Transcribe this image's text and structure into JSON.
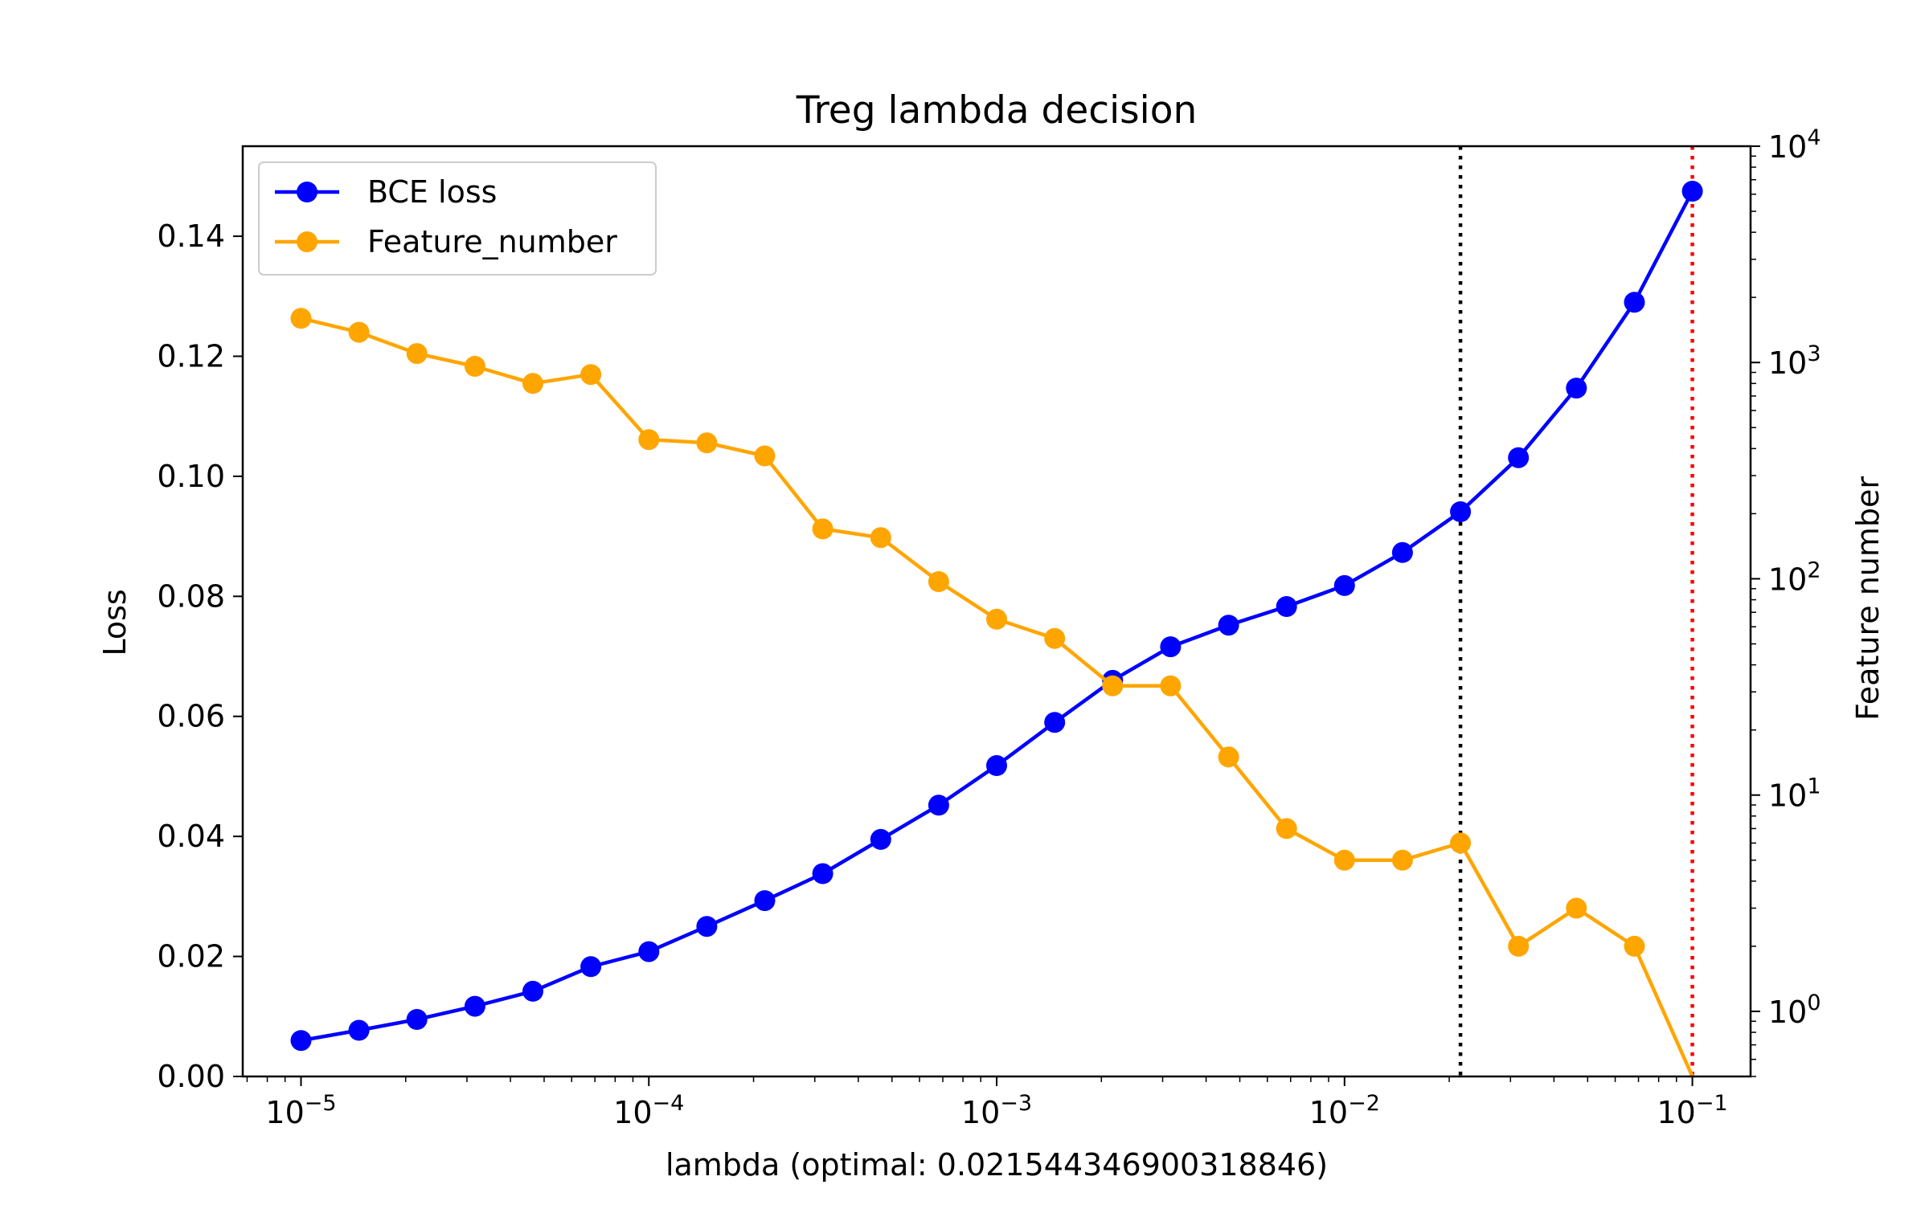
{
  "chart_data": {
    "type": "line",
    "title": "Treg lambda decision",
    "xlabel": "lambda (optimal: 0.021544346900318846)",
    "ylabel_left": "Loss",
    "ylabel_right": "Feature number",
    "x_scale": "log",
    "xlim": [
      6.8e-06,
      0.147
    ],
    "ylim_left": [
      0.0,
      0.155
    ],
    "ylim_right_log": [
      0.5,
      10000
    ],
    "y_right_scale": "log",
    "grid": false,
    "legend_position": "upper left",
    "x": [
      1e-05,
      1.4678e-05,
      2.15443e-05,
      3.16228e-05,
      4.64159e-05,
      6.81292e-05,
      0.0001,
      0.00014678,
      0.000215443,
      0.000316228,
      0.000464159,
      0.000681292,
      0.001,
      0.0014678,
      0.00215443,
      0.00316228,
      0.00464159,
      0.00681292,
      0.01,
      0.014678,
      0.0215443,
      0.0316228,
      0.0464159,
      0.0681292,
      0.1
    ],
    "series": [
      {
        "name": "BCE loss",
        "axis": "left",
        "color": "#0000ff",
        "values": [
          0.006,
          0.0077,
          0.0095,
          0.0117,
          0.0142,
          0.0183,
          0.0208,
          0.025,
          0.0293,
          0.0338,
          0.0395,
          0.0452,
          0.0518,
          0.059,
          0.066,
          0.0716,
          0.0752,
          0.0783,
          0.0818,
          0.0873,
          0.0941,
          0.1031,
          0.1147,
          0.129,
          0.1475
        ]
      },
      {
        "name": "Feature_number",
        "axis": "right",
        "color": "#ffa500",
        "values": [
          1600,
          1380,
          1100,
          960,
          800,
          880,
          440,
          425,
          370,
          170,
          155,
          97,
          65,
          53,
          32,
          32,
          15,
          7,
          5,
          5,
          6,
          2,
          3,
          2,
          0
        ]
      }
    ],
    "vlines": [
      {
        "x": 0.021544346900318846,
        "color": "#000000",
        "style": "dotted"
      },
      {
        "x": 0.1,
        "color": "#ff0000",
        "style": "dotted"
      }
    ],
    "x_ticks": [
      {
        "value": 1e-05,
        "base": "10",
        "exp": "−5"
      },
      {
        "value": 0.0001,
        "base": "10",
        "exp": "−4"
      },
      {
        "value": 0.001,
        "base": "10",
        "exp": "−3"
      },
      {
        "value": 0.01,
        "base": "10",
        "exp": "−2"
      },
      {
        "value": 0.1,
        "base": "10",
        "exp": "−1"
      }
    ],
    "y_left_ticks": [
      0.0,
      0.02,
      0.04,
      0.06,
      0.08,
      0.1,
      0.12,
      0.14
    ],
    "y_left_tick_labels": [
      "0.00",
      "0.02",
      "0.04",
      "0.06",
      "0.08",
      "0.10",
      "0.12",
      "0.14"
    ],
    "y_right_ticks": [
      {
        "value": 1,
        "base": "10",
        "exp": "0"
      },
      {
        "value": 10,
        "base": "10",
        "exp": "1"
      },
      {
        "value": 100,
        "base": "10",
        "exp": "2"
      },
      {
        "value": 1000,
        "base": "10",
        "exp": "3"
      },
      {
        "value": 10000,
        "base": "10",
        "exp": "4"
      }
    ]
  }
}
